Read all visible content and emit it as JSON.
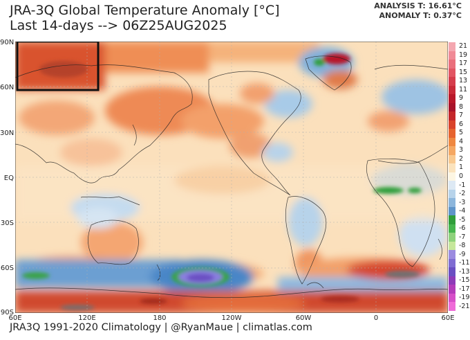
{
  "header": {
    "title": "JRA-3Q Global Temperature Anomaly [°C]",
    "subtitle": "Last 14-days --> 06Z25AUG2025",
    "analysis": "ANALYSIS T: 16.61°C",
    "anomaly": "ANOMALY T: 0.37°C"
  },
  "map": {
    "lat_labels": [
      "90N",
      "60N",
      "30N",
      "EQ",
      "30S",
      "60S",
      "90S"
    ],
    "lon_labels": [
      "60E",
      "120E",
      "180",
      "120W",
      "60W",
      "0",
      "60E"
    ]
  },
  "colorbar": {
    "labels": [
      "21",
      "19",
      "17",
      "15",
      "13",
      "11",
      "9",
      "8",
      "7",
      "6",
      "5",
      "4",
      "3",
      "2",
      "1",
      "0",
      "-1",
      "-2",
      "-3",
      "-4",
      "-5",
      "-6",
      "-7",
      "-8",
      "-9",
      "-11",
      "-13",
      "-15",
      "-17",
      "-19",
      "-21"
    ],
    "colors": [
      "#f4a7b0",
      "#f08a96",
      "#ea6f7c",
      "#e25563",
      "#d63d4c",
      "#c92a38",
      "#b9182a",
      "#a8132a",
      "#c4262a",
      "#d9432b",
      "#e6632f",
      "#ef8740",
      "#f5a762",
      "#f9c98f",
      "#fbe3bd",
      "#fdf6e3",
      "#dde9f4",
      "#b7d3ea",
      "#8cb6dc",
      "#5f94c9",
      "#2f9e3a",
      "#46b64e",
      "#8ed27c",
      "#c6e79c",
      "#9b8be0",
      "#7f6cd2",
      "#6a4fc2",
      "#8e3bb8",
      "#b43cba",
      "#d64fc8",
      "#ef6bd8"
    ]
  },
  "footer": {
    "text": "JRA3Q 1991-2020 Climatology | @RyanMaue | climatlas.com"
  }
}
